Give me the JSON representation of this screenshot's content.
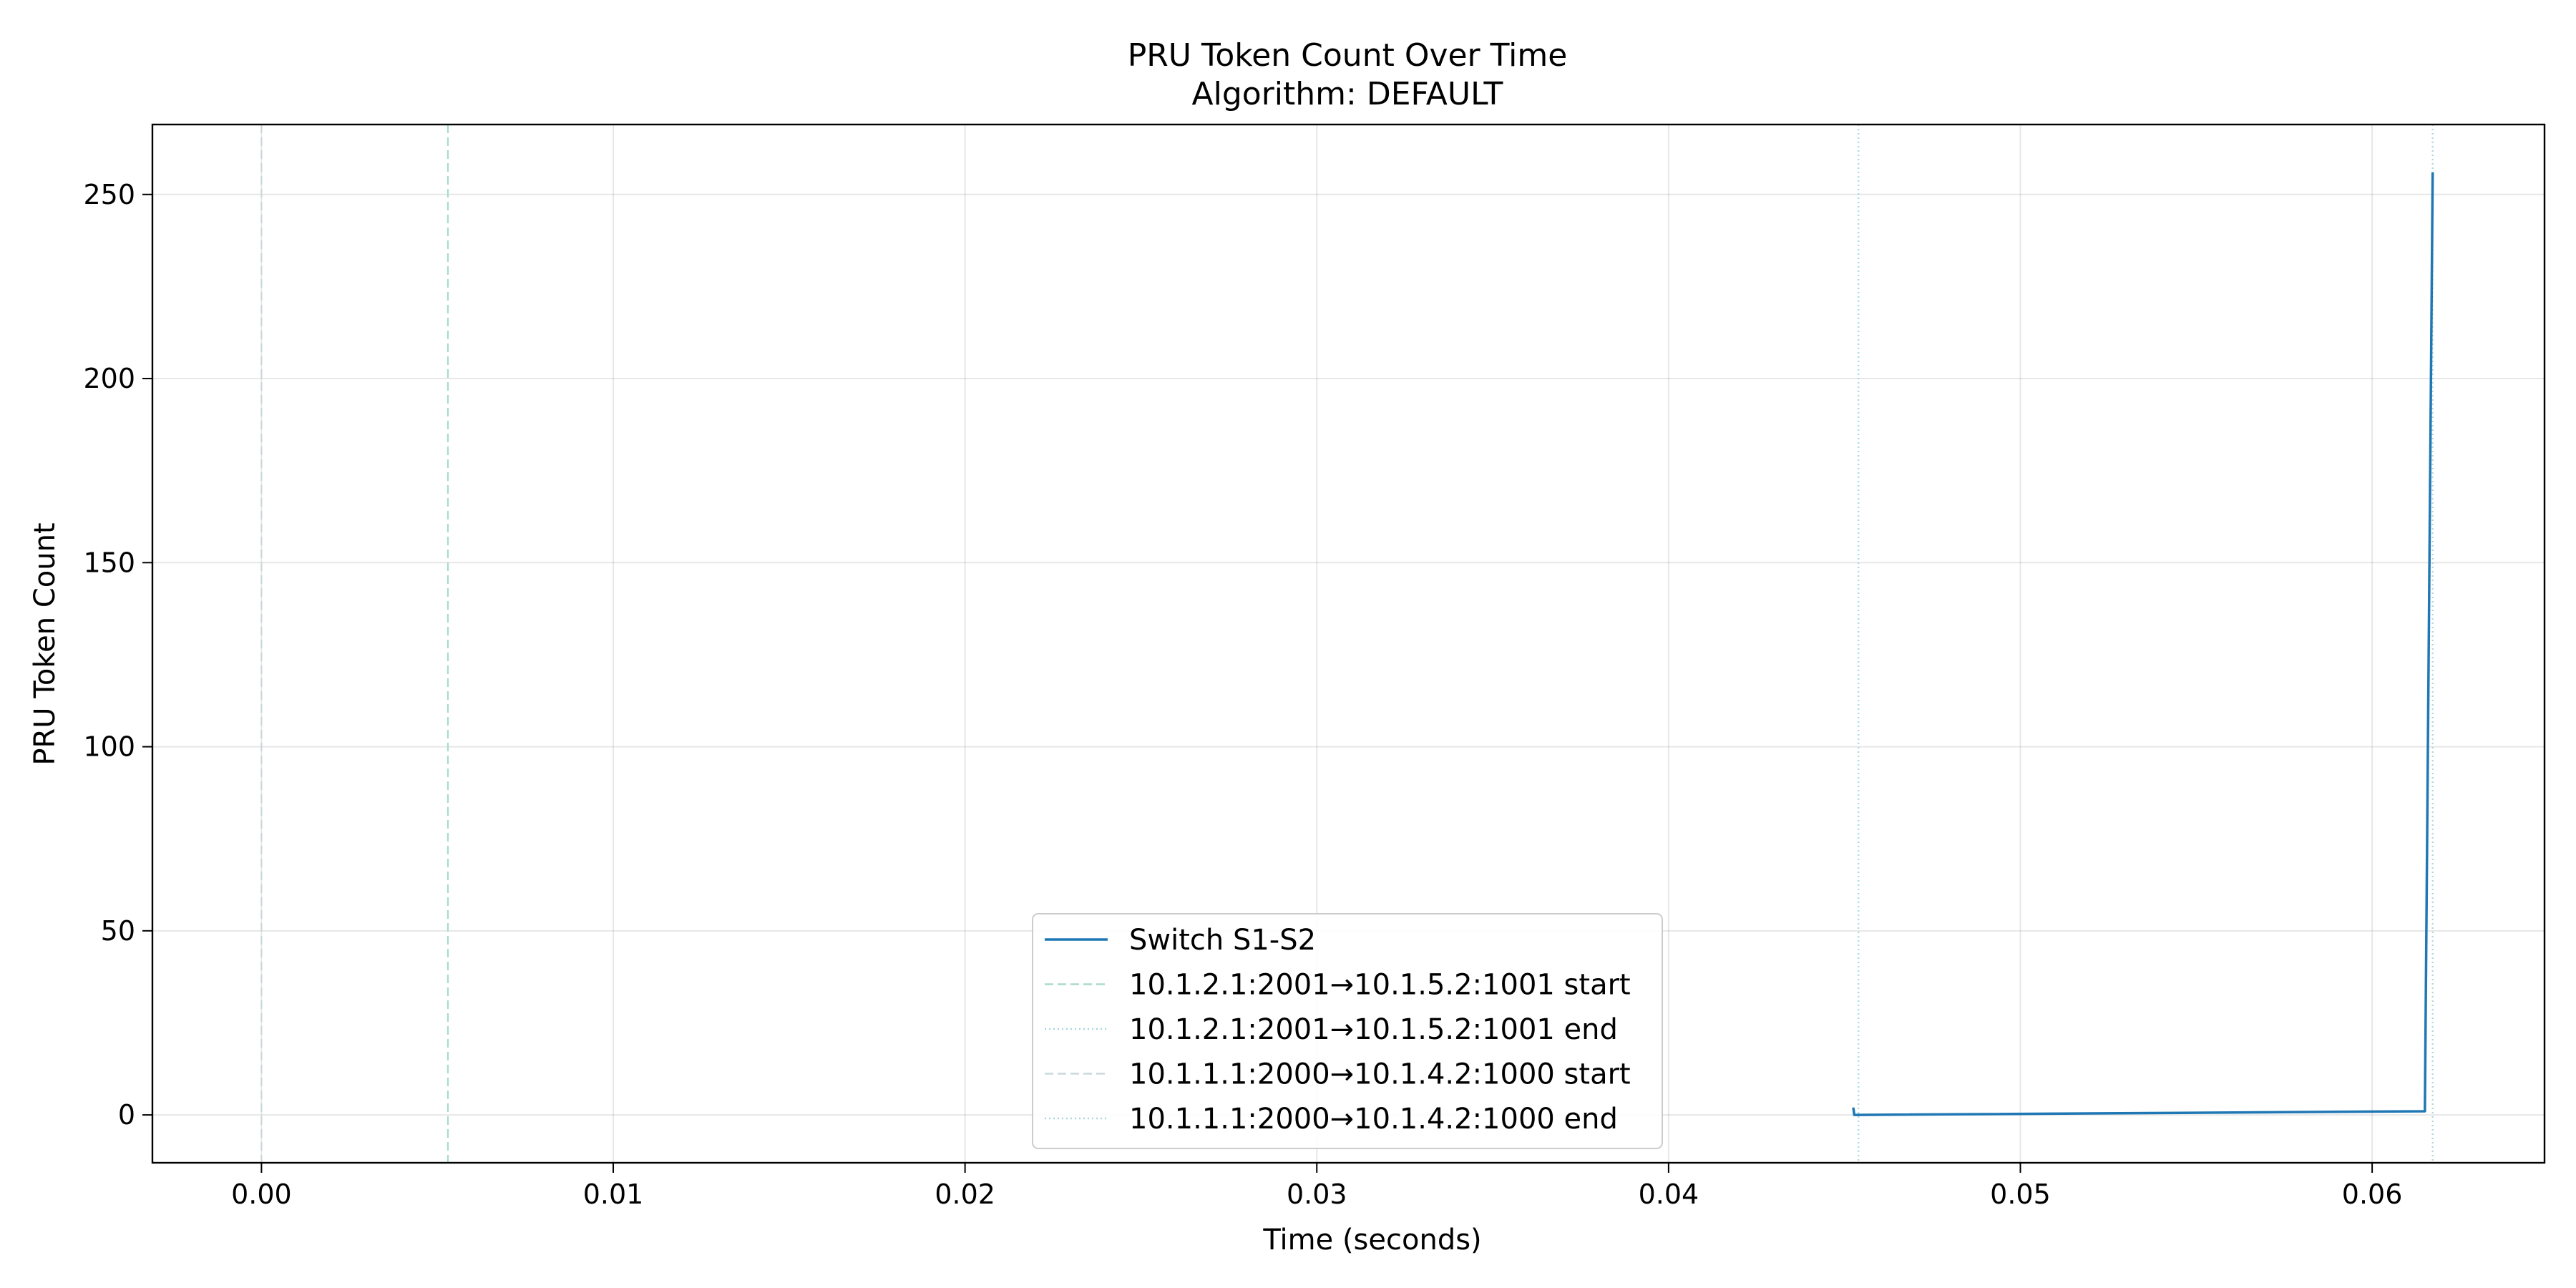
{
  "chart_data": {
    "type": "line",
    "title": "PRU Token Count Over Time",
    "subtitle": "Algorithm: DEFAULT",
    "xlabel": "Time (seconds)",
    "ylabel": "PRU Token Count",
    "xlim": [
      -0.0031,
      0.0649
    ],
    "ylim": [
      -13,
      269
    ],
    "x_ticks": [
      0.0,
      0.01,
      0.02,
      0.03,
      0.04,
      0.05,
      0.06
    ],
    "x_tick_labels": [
      "0.00",
      "0.01",
      "0.02",
      "0.03",
      "0.04",
      "0.05",
      "0.06"
    ],
    "y_ticks": [
      0,
      50,
      100,
      150,
      200,
      250
    ],
    "y_tick_labels": [
      "0",
      "50",
      "100",
      "150",
      "200",
      "250"
    ],
    "grid": true,
    "legend_position": "bottom-center",
    "series": [
      {
        "name": "Switch S1-S2",
        "color": "#1f77b4",
        "style": "solid",
        "x": [
          0.04525,
          0.04528,
          0.0454,
          0.0615,
          0.06172
        ],
        "y": [
          2,
          0,
          0,
          1,
          256
        ]
      }
    ],
    "vlines": [
      {
        "name": "10.1.2.1:2001→10.1.5.2:1001 start",
        "x": 0.0053,
        "color": "#a8dccd",
        "style": "dashed"
      },
      {
        "name": "10.1.2.1:2001→10.1.5.2:1001 end",
        "x": 0.0454,
        "color": "#a6d8df",
        "style": "dotted"
      },
      {
        "name": "10.1.1.1:2000→10.1.4.2:1000 start",
        "x": 0.0,
        "color": "#c9d8da",
        "style": "dashed"
      },
      {
        "name": "10.1.1.1:2000→10.1.4.2:1000 end",
        "x": 0.06172,
        "color": "#aad6dc",
        "style": "dotted"
      }
    ]
  }
}
